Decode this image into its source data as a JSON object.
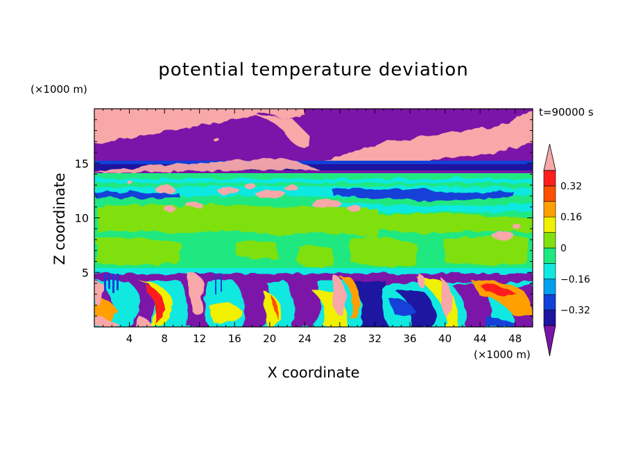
{
  "chart_data": {
    "type": "heatmap",
    "title": "potential temperature deviation",
    "xlabel": "X coordinate",
    "ylabel": "Z coordinate",
    "x_unit": "(×1000 m)",
    "z_unit": "(×1000 m)",
    "annotation": "t=90000 s",
    "xlim": [
      0,
      50
    ],
    "ylim": [
      0,
      20
    ],
    "x_ticks": [
      "4",
      "8",
      "12",
      "16",
      "20",
      "24",
      "28",
      "32",
      "36",
      "40",
      "44",
      "48"
    ],
    "y_ticks": [
      "5",
      "10",
      "15"
    ],
    "colorbar": {
      "levels": [
        -0.4,
        -0.32,
        -0.24,
        -0.16,
        -0.08,
        0,
        0.08,
        0.16,
        0.24,
        0.32,
        0.4
      ],
      "colors": [
        "#7b14a8",
        "#1e14a0",
        "#1240d8",
        "#00a0f0",
        "#10e8e0",
        "#20e880",
        "#80e010",
        "#f0f000",
        "#ffa000",
        "#ff5000",
        "#ff1e1e",
        "#f8a8a8"
      ],
      "tick_labels": [
        "0.32",
        "0.16",
        "0",
        "-0.16",
        "-0.32"
      ],
      "tick_values": [
        0.32,
        0.16,
        0,
        -0.16,
        -0.32
      ],
      "extend": "both"
    },
    "grid": false,
    "layers": [
      {
        "z": [
          15.1,
          20.0
        ],
        "description": "mixed pink (>0.4) and purple (<-0.4) regions"
      },
      {
        "z": [
          14.0,
          15.1
        ],
        "description": "dark blue / purple stable layer"
      },
      {
        "z": [
          5.2,
          14.0
        ],
        "description": "banded green (~0) with light green and cyan bands"
      },
      {
        "z": [
          0.0,
          5.2
        ],
        "description": "turbulent boundary layer, full colour range"
      }
    ]
  }
}
